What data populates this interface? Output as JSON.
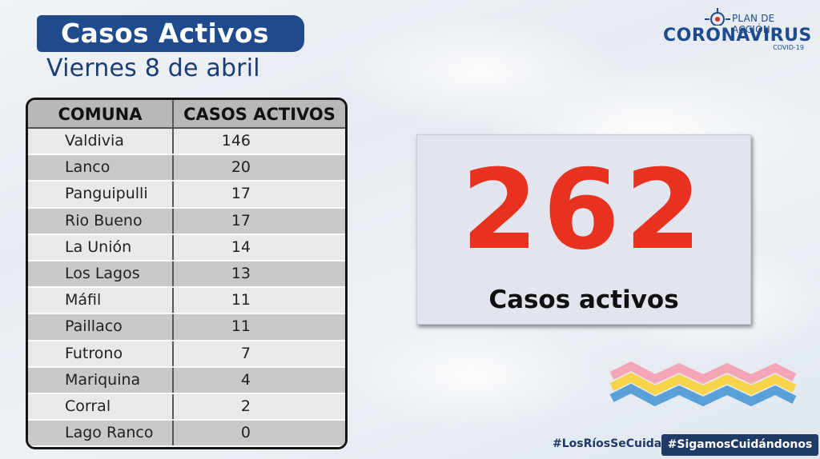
{
  "header": {
    "title": "Casos Activos",
    "subtitle": "Viernes 8 de abril"
  },
  "logo": {
    "plan": "PLAN DE ACCIÓN",
    "name": "CORONAVIRUS",
    "tag": "COVID-19"
  },
  "table": {
    "headers": [
      "COMUNA",
      "CASOS ACTIVOS"
    ],
    "rows": [
      {
        "comuna": "Valdivia",
        "casos": "146"
      },
      {
        "comuna": "Lanco",
        "casos": "20"
      },
      {
        "comuna": "Panguipulli",
        "casos": "17"
      },
      {
        "comuna": "Rio Bueno",
        "casos": "17"
      },
      {
        "comuna": "La Unión",
        "casos": "14"
      },
      {
        "comuna": "Los Lagos",
        "casos": "13"
      },
      {
        "comuna": "Máfil",
        "casos": "11"
      },
      {
        "comuna": "Paillaco",
        "casos": "11"
      },
      {
        "comuna": "Futrono",
        "casos": "7"
      },
      {
        "comuna": "Mariquina",
        "casos": "4"
      },
      {
        "comuna": "Corral",
        "casos": "2"
      },
      {
        "comuna": "Lago Ranco",
        "casos": "0"
      }
    ]
  },
  "summary": {
    "total": "262",
    "label": "Casos activos"
  },
  "footer": {
    "hashtag_1": "#LosRíosSeCuida",
    "hashtag_2": "#SigamosCuidándonos"
  },
  "colors": {
    "title_bg": "#1f4a8c",
    "total": "#e6321e",
    "wave_pink": "#f4a6b8",
    "wave_yellow": "#f6d54a",
    "wave_blue": "#5aa0d8"
  }
}
